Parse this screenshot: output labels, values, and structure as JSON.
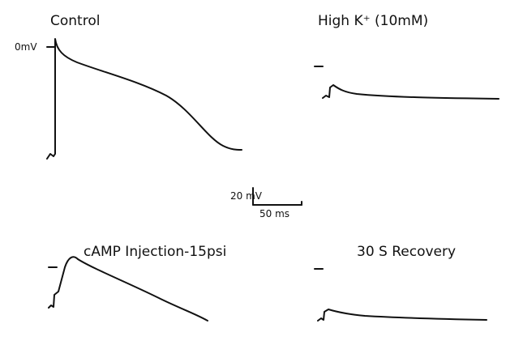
{
  "panels": [
    {
      "title": "Control",
      "zero_label": "0mV"
    },
    {
      "title": "High K⁺ (10mM)"
    },
    {
      "title": "cAMP Injection-15psi"
    },
    {
      "title": "30 S Recovery"
    }
  ],
  "scale_bar": {
    "voltage": "20 mV",
    "time": "50 ms"
  }
}
